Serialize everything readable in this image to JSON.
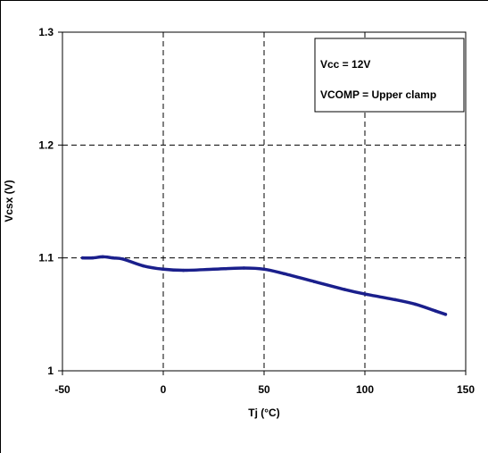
{
  "chart_data": {
    "type": "line",
    "xlabel": "Tj (°C)",
    "ylabel": "Vcsx (V)",
    "xlim": [
      -50,
      150
    ],
    "ylim": [
      1,
      1.3
    ],
    "xticks": [
      -50,
      0,
      50,
      100,
      150
    ],
    "yticks": [
      1,
      1.1,
      1.2,
      1.3
    ],
    "x_tick_labels": [
      "-50",
      "0",
      "50",
      "100",
      "150"
    ],
    "y_tick_labels": [
      "1",
      "1.1",
      "1.2",
      "1.3"
    ],
    "grid": true,
    "annotation": {
      "lines": [
        "Vcc = 12V",
        "VCOMP = Upper clamp"
      ],
      "placement": "top-right"
    },
    "series": [
      {
        "color": "#1a1f8c",
        "x": [
          -40,
          -35,
          -30,
          -25,
          -20,
          -10,
          0,
          10,
          25,
          40,
          50,
          60,
          75,
          90,
          100,
          115,
          125,
          135,
          140
        ],
        "y": [
          1.1,
          1.1,
          1.101,
          1.1,
          1.099,
          1.093,
          1.09,
          1.089,
          1.09,
          1.091,
          1.09,
          1.086,
          1.079,
          1.072,
          1.068,
          1.063,
          1.059,
          1.053,
          1.05
        ]
      }
    ]
  }
}
